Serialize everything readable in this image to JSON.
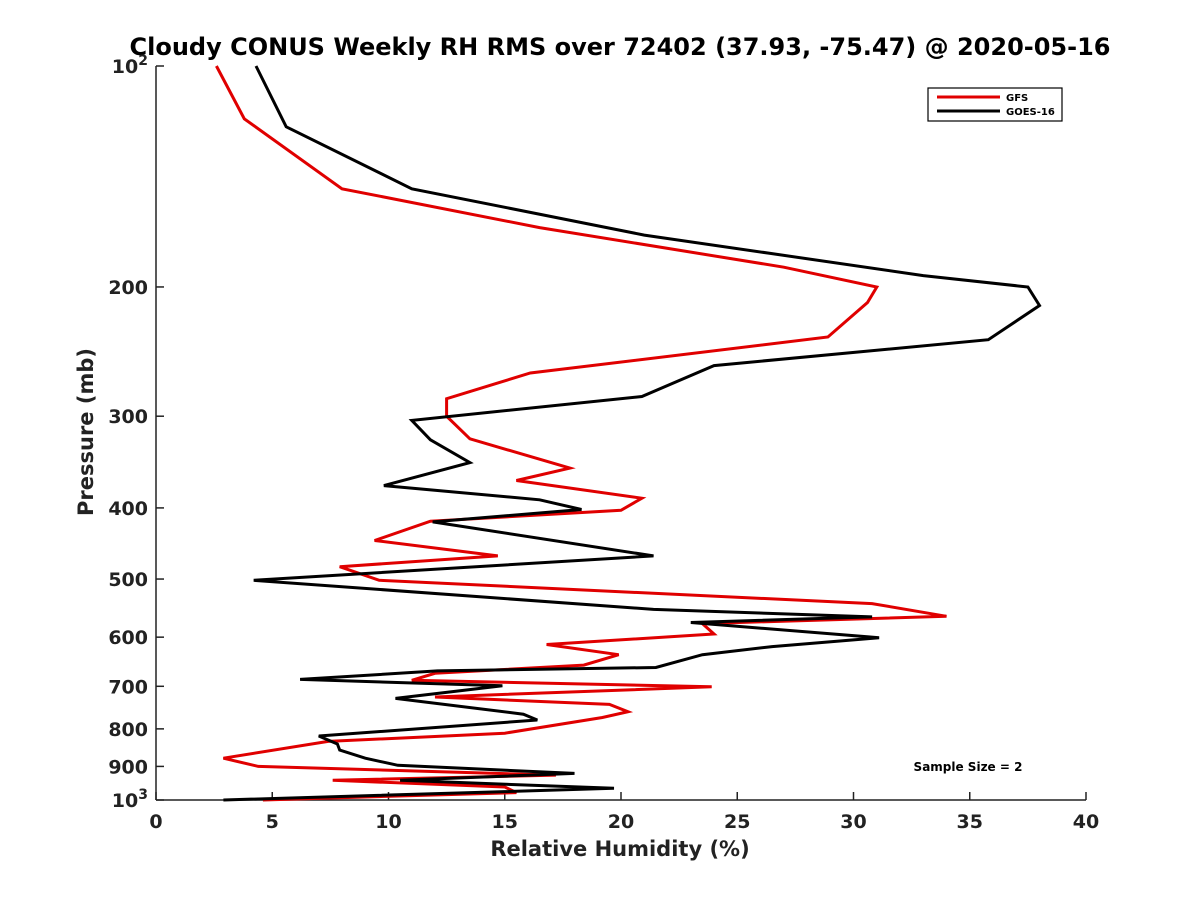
{
  "chart_data": {
    "type": "line",
    "title": "Cloudy CONUS Weekly RH RMS over 72402 (37.93, -75.47) @ 2020-05-16",
    "xlabel": "Relative Humidity (%)",
    "ylabel": "Pressure (mb)",
    "xlim": [
      0,
      40
    ],
    "ylim": [
      100,
      1000
    ],
    "y_scale": "log",
    "y_reversed": true,
    "grid": false,
    "legend_position": "top-right",
    "x_ticks": [
      "0",
      "5",
      "10",
      "15",
      "20",
      "25",
      "30",
      "35",
      "40"
    ],
    "y_ticks": [
      {
        "value": 100,
        "label": "10",
        "sup": "2"
      },
      {
        "value": 200,
        "label": "200",
        "sup": ""
      },
      {
        "value": 300,
        "label": "300",
        "sup": ""
      },
      {
        "value": 400,
        "label": "400",
        "sup": ""
      },
      {
        "value": 500,
        "label": "500",
        "sup": ""
      },
      {
        "value": 600,
        "label": "600",
        "sup": ""
      },
      {
        "value": 700,
        "label": "700",
        "sup": ""
      },
      {
        "value": 800,
        "label": "800",
        "sup": ""
      },
      {
        "value": 900,
        "label": "900",
        "sup": ""
      },
      {
        "value": 1000,
        "label": "10",
        "sup": "3"
      }
    ],
    "series": [
      {
        "name": "GFS",
        "color": "#e00000",
        "points": [
          [
            2.6,
            100
          ],
          [
            3.8,
            118
          ],
          [
            8.0,
            147
          ],
          [
            16.5,
            166
          ],
          [
            27.0,
            188
          ],
          [
            31.0,
            200
          ],
          [
            30.6,
            210
          ],
          [
            28.9,
            234
          ],
          [
            16.1,
            262
          ],
          [
            12.5,
            284
          ],
          [
            12.5,
            300
          ],
          [
            13.5,
            322
          ],
          [
            17.8,
            353
          ],
          [
            15.5,
            367
          ],
          [
            20.9,
            388
          ],
          [
            20.0,
            403
          ],
          [
            11.8,
            417
          ],
          [
            9.4,
            443
          ],
          [
            14.7,
            465
          ],
          [
            7.9,
            481
          ],
          [
            9.6,
            502
          ],
          [
            30.8,
            540
          ],
          [
            34.0,
            562
          ],
          [
            23.5,
            575
          ],
          [
            24.0,
            594
          ],
          [
            16.8,
            614
          ],
          [
            19.9,
            634
          ],
          [
            18.4,
            655
          ],
          [
            12.0,
            672
          ],
          [
            11.0,
            687
          ],
          [
            23.9,
            701
          ],
          [
            12.0,
            724
          ],
          [
            19.5,
            741
          ],
          [
            20.3,
            758
          ],
          [
            19.2,
            772
          ],
          [
            15.0,
            811
          ],
          [
            7.4,
            832
          ],
          [
            2.9,
            877
          ],
          [
            4.4,
            900
          ],
          [
            17.2,
            925
          ],
          [
            7.6,
            940
          ],
          [
            15.0,
            960
          ],
          [
            15.5,
            977
          ],
          [
            4.6,
            1000
          ]
        ]
      },
      {
        "name": "GOES-16",
        "color": "#000000",
        "points": [
          [
            4.3,
            100
          ],
          [
            5.6,
            121
          ],
          [
            11.0,
            147
          ],
          [
            21.0,
            170
          ],
          [
            33.0,
            193
          ],
          [
            37.5,
            200
          ],
          [
            38.0,
            212
          ],
          [
            35.8,
            236
          ],
          [
            24.0,
            256
          ],
          [
            20.9,
            282
          ],
          [
            11.0,
            304
          ],
          [
            11.8,
            323
          ],
          [
            13.5,
            347
          ],
          [
            9.8,
            373
          ],
          [
            16.5,
            390
          ],
          [
            18.3,
            402
          ],
          [
            11.9,
            418
          ],
          [
            21.4,
            465
          ],
          [
            4.2,
            502
          ],
          [
            21.4,
            550
          ],
          [
            30.8,
            563
          ],
          [
            23.0,
            573
          ],
          [
            31.1,
            601
          ],
          [
            26.5,
            618
          ],
          [
            23.5,
            634
          ],
          [
            21.5,
            660
          ],
          [
            12.1,
            667
          ],
          [
            6.2,
            685
          ],
          [
            14.9,
            699
          ],
          [
            10.3,
            727
          ],
          [
            15.8,
            764
          ],
          [
            16.4,
            778
          ],
          [
            7.0,
            818
          ],
          [
            7.8,
            839
          ],
          [
            7.9,
            855
          ],
          [
            9.0,
            877
          ],
          [
            10.4,
            897
          ],
          [
            18.0,
            920
          ],
          [
            10.5,
            940
          ],
          [
            19.7,
            964
          ],
          [
            2.9,
            1000
          ]
        ]
      }
    ],
    "annotations": [
      "Sample Size = 2"
    ]
  }
}
